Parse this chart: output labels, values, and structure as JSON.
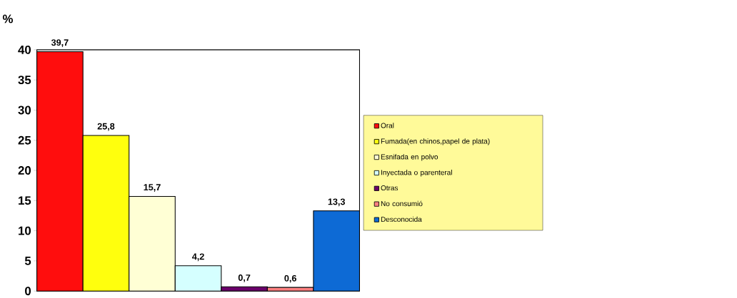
{
  "chart_data": {
    "type": "bar",
    "ylabel": "%",
    "categories": [
      null
    ],
    "series": [
      {
        "name": "Oral",
        "color": "#ff0d0d",
        "values": [
          39.7
        ],
        "value_labels": [
          "39,7"
        ]
      },
      {
        "name": "Fumada(en chinos,papel de plata)",
        "color": "#ffff0d",
        "values": [
          25.8
        ],
        "value_labels": [
          "25,8"
        ]
      },
      {
        "name": "Esnifada en polvo",
        "color": "#ffffd5",
        "values": [
          15.7
        ],
        "value_labels": [
          "15,7"
        ]
      },
      {
        "name": "Inyectada o parenteral",
        "color": "#d5ffff",
        "values": [
          4.2
        ],
        "value_labels": [
          "4,2"
        ]
      },
      {
        "name": "Otras",
        "color": "#6a006a",
        "values": [
          0.7
        ],
        "value_labels": [
          "0,7"
        ]
      },
      {
        "name": "No consumió",
        "color": "#ff8080",
        "values": [
          0.6
        ],
        "value_labels": [
          "0,6"
        ]
      },
      {
        "name": "Desconocida",
        "color": "#0d6ad5",
        "values": [
          13.3
        ],
        "value_labels": [
          "13,3"
        ]
      }
    ],
    "ylim": [
      0,
      40
    ],
    "yticks": [
      0,
      5,
      10,
      15,
      20,
      25,
      30,
      35,
      40
    ],
    "legend": "right"
  }
}
